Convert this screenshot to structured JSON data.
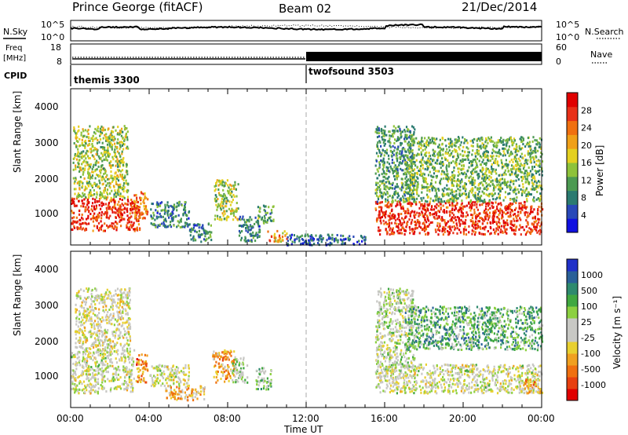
{
  "header": {
    "station": "Prince George (fitACF)",
    "beam": "Beam 02",
    "date": "21/Dec/2014"
  },
  "strip": {
    "nsky_label": "N.Sky",
    "nsky_ticks": [
      "10^5",
      "10^0"
    ],
    "nsearch_label": "N.Search",
    "nsearch_ticks": [
      "10^5",
      "10^0"
    ],
    "freq_label_1": "Freq",
    "freq_label_2": "[MHz]",
    "freq_ticks": [
      "18",
      "8"
    ],
    "nave_label": "Nave",
    "nave_ticks": [
      "60",
      "0"
    ],
    "cpid_label": "CPID",
    "cpid_segments": [
      {
        "name": "themis 3300",
        "start_hour": 0
      },
      {
        "name": "twofsound 3503",
        "start_hour": 12
      }
    ]
  },
  "panels": {
    "power": {
      "ylabel": "Slant Range [km]",
      "yticks": [
        "4000",
        "3000",
        "2000",
        "1000"
      ],
      "cbar_label": "Power [dB]",
      "cbar_ticks": [
        "28",
        "24",
        "20",
        "16",
        "12",
        "8",
        "4"
      ],
      "colors": [
        "#1010e0",
        "#2848b8",
        "#2a7a70",
        "#4c9a52",
        "#8ec23a",
        "#e4d020",
        "#f0a018",
        "#f07010",
        "#e83018",
        "#e00000"
      ]
    },
    "velocity": {
      "ylabel": "Slant Range [km]",
      "yticks": [
        "4000",
        "3000",
        "2000",
        "1000"
      ],
      "cbar_label": "Velocity [m s⁻¹]",
      "cbar_ticks": [
        "1000",
        "500",
        "100",
        "25",
        "-25",
        "-100",
        "-500",
        "-1000"
      ],
      "colors": [
        "#2030c8",
        "#2a6098",
        "#2e8a6e",
        "#40a840",
        "#8cd040",
        "#c8c8c4",
        "#c8c8c4",
        "#e8d030",
        "#f0a020",
        "#f07010",
        "#e84010",
        "#e00000"
      ]
    }
  },
  "xaxis": {
    "label": "Time UT",
    "ticks": [
      "00:00",
      "04:00",
      "08:00",
      "12:00",
      "16:00",
      "20:00",
      "00:00"
    ]
  },
  "chart_data": {
    "type": "heatmap",
    "title": "Prince George (fitACF)",
    "subtitle": "Beam 02  21/Dec/2014",
    "x_range_hours": [
      0,
      24
    ],
    "y_range_km": [
      180,
      4500
    ],
    "panels": [
      {
        "name": "Power",
        "units": "dB",
        "color_range": [
          0,
          30
        ],
        "regions": [
          {
            "t0": 0.0,
            "t1": 3.5,
            "r0": 600,
            "r1": 1500,
            "v": 26
          },
          {
            "t0": 0.1,
            "t1": 2.9,
            "r0": 1500,
            "r1": 3500,
            "v": 14
          },
          {
            "t0": 3.2,
            "t1": 3.9,
            "r0": 900,
            "r1": 1700,
            "v": 22
          },
          {
            "t0": 4.0,
            "t1": 6.0,
            "r0": 700,
            "r1": 1400,
            "v": 8
          },
          {
            "t0": 6.0,
            "t1": 7.2,
            "r0": 300,
            "r1": 800,
            "v": 8
          },
          {
            "t0": 7.3,
            "t1": 8.5,
            "r0": 900,
            "r1": 2000,
            "v": 14
          },
          {
            "t0": 8.5,
            "t1": 9.6,
            "r0": 300,
            "r1": 1000,
            "v": 8
          },
          {
            "t0": 9.5,
            "t1": 10.3,
            "r0": 800,
            "r1": 1300,
            "v": 10
          },
          {
            "t0": 10.0,
            "t1": 11.0,
            "r0": 300,
            "r1": 600,
            "v": 20
          },
          {
            "t0": 11.0,
            "t1": 15.0,
            "r0": 200,
            "r1": 500,
            "v": 6
          },
          {
            "t0": 15.5,
            "t1": 24.0,
            "r0": 500,
            "r1": 1400,
            "v": 26
          },
          {
            "t0": 15.5,
            "t1": 17.5,
            "r0": 1400,
            "r1": 3500,
            "v": 10
          },
          {
            "t0": 17.0,
            "t1": 24.0,
            "r0": 1400,
            "r1": 3200,
            "v": 12
          }
        ]
      },
      {
        "name": "Velocity",
        "units": "m s^-1",
        "color_range": [
          -1000,
          1000
        ],
        "regions": [
          {
            "t0": 0.0,
            "t1": 3.2,
            "r0": 600,
            "r1": 1800,
            "v": 0
          },
          {
            "t0": 0.2,
            "t1": 3.0,
            "r0": 1800,
            "r1": 3500,
            "v": -60
          },
          {
            "t0": 3.3,
            "t1": 3.9,
            "r0": 900,
            "r1": 1700,
            "v": -500
          },
          {
            "t0": 4.0,
            "t1": 6.0,
            "r0": 800,
            "r1": 1400,
            "v": 0
          },
          {
            "t0": 4.8,
            "t1": 6.8,
            "r0": 400,
            "r1": 800,
            "v": -300
          },
          {
            "t0": 7.2,
            "t1": 8.3,
            "r0": 900,
            "r1": 1800,
            "v": -400
          },
          {
            "t0": 8.2,
            "t1": 9.0,
            "r0": 900,
            "r1": 1600,
            "v": 150
          },
          {
            "t0": 9.4,
            "t1": 10.2,
            "r0": 700,
            "r1": 1300,
            "v": 300
          },
          {
            "t0": 15.5,
            "t1": 17.5,
            "r0": 1200,
            "r1": 3500,
            "v": 80
          },
          {
            "t0": 17.0,
            "t1": 24.0,
            "r0": 1800,
            "r1": 3000,
            "v": 400
          },
          {
            "t0": 15.5,
            "t1": 24.0,
            "r0": 600,
            "r1": 1400,
            "v": 0
          },
          {
            "t0": 23.0,
            "t1": 24.0,
            "r0": 600,
            "r1": 1000,
            "v": -400
          }
        ]
      }
    ],
    "noise_hours": [
      0,
      24
    ],
    "cpid_change_hour": 12
  }
}
